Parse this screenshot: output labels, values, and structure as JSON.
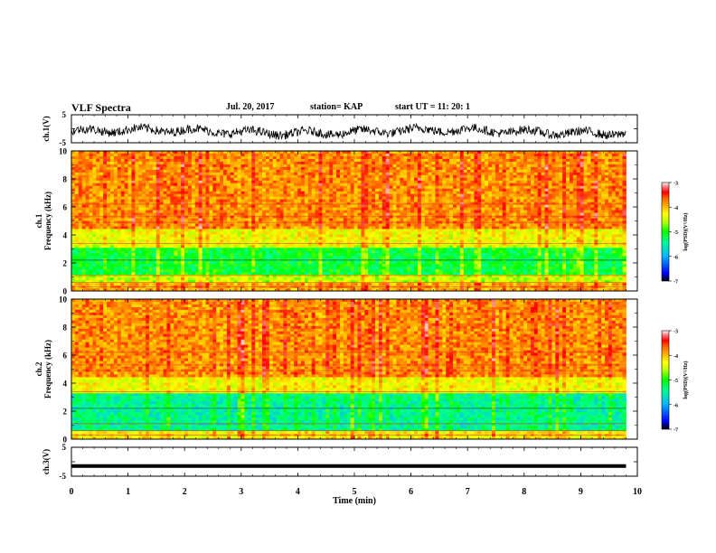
{
  "header": {
    "title": "VLF Spectra",
    "date": "Jul. 20, 2017",
    "station": "station= KAP",
    "start": "start UT =  11: 20: 1"
  },
  "chart_data": [
    {
      "type": "line",
      "title": "",
      "ylabel": "ch.1(V)",
      "ylim": [
        -5,
        5
      ],
      "yticks": [
        "5",
        "-5"
      ],
      "x_range": [
        0,
        9.8
      ],
      "description_series": "noisy waveform around about -1 V"
    },
    {
      "type": "heatmap",
      "ylabel_line1": "ch.1",
      "ylabel_line2": "Frequency (kHz)",
      "ylim": [
        0,
        10
      ],
      "yticks": [
        "0",
        "2",
        "4",
        "6",
        "8",
        "10"
      ],
      "x_range": [
        0,
        9.8
      ],
      "colorbar": {
        "label": "log(PSD)(V²/Hz)",
        "range": [
          -7,
          -3
        ],
        "ticks": [
          "-3",
          "-4",
          "-5",
          "-6",
          "-7"
        ]
      },
      "bands": [
        {
          "from_khz": 0,
          "to_khz": 0.5,
          "level": -4.0
        },
        {
          "from_khz": 0.5,
          "to_khz": 1.2,
          "level": -4.5
        },
        {
          "from_khz": 1.2,
          "to_khz": 3.0,
          "level": -5.1
        },
        {
          "from_khz": 3.0,
          "to_khz": 4.5,
          "level": -4.4
        },
        {
          "from_khz": 4.5,
          "to_khz": 10,
          "level": -3.9
        }
      ]
    },
    {
      "type": "heatmap",
      "ylabel_line1": "ch.2",
      "ylabel_line2": "Frequency (kHz)",
      "ylim": [
        0,
        10
      ],
      "yticks": [
        "0",
        "2",
        "4",
        "6",
        "8",
        "10"
      ],
      "x_range": [
        0,
        9.8
      ],
      "colorbar": {
        "label": "log(PSD)(V²/Hz)",
        "range": [
          -7,
          -3
        ],
        "ticks": [
          "-3",
          "-4",
          "-5",
          "-6",
          "-7"
        ]
      },
      "bands": [
        {
          "from_khz": 0,
          "to_khz": 0.5,
          "level": -4.3
        },
        {
          "from_khz": 0.5,
          "to_khz": 3.2,
          "level": -5.4
        },
        {
          "from_khz": 3.2,
          "to_khz": 4.5,
          "level": -4.4
        },
        {
          "from_khz": 4.5,
          "to_khz": 10,
          "level": -3.9
        }
      ]
    },
    {
      "type": "line",
      "ylabel": "ch.3(V)",
      "ylim": [
        -5,
        5
      ],
      "yticks": [
        "5",
        "-5"
      ],
      "x_range": [
        0,
        9.8
      ],
      "constant_value": -1.5
    }
  ],
  "xaxis": {
    "label": "Time (min)",
    "range": [
      0,
      10
    ],
    "ticks": [
      "0",
      "1",
      "2",
      "3",
      "4",
      "5",
      "6",
      "7",
      "8",
      "9",
      "10"
    ]
  },
  "colors": {
    "colormap": [
      "#000000",
      "#0000ff",
      "#00b4ff",
      "#00ff90",
      "#00ff00",
      "#b4ff00",
      "#ffff00",
      "#ffb400",
      "#ff6400",
      "#ff0000",
      "#ff8080",
      "#ffffff"
    ]
  }
}
